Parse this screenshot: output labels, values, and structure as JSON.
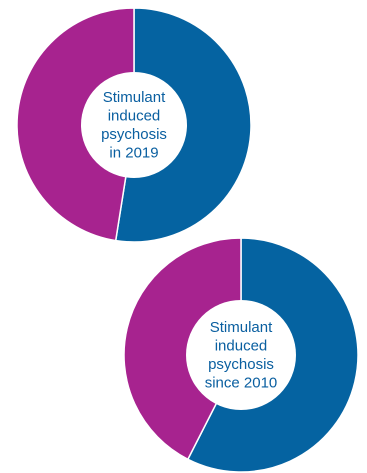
{
  "colors": {
    "segment_a": "#0563a1",
    "segment_b": "#a7238f",
    "center": "#ffffff",
    "label_text": "#0a5fa0"
  },
  "chart_data": [
    {
      "type": "pie",
      "label_lines": [
        "Stimulant",
        "induced",
        "psychosis",
        "in 2019"
      ],
      "slices": [
        {
          "value": 52.5,
          "color_key": "segment_a"
        },
        {
          "value": 47.5,
          "color_key": "segment_b"
        }
      ]
    },
    {
      "type": "pie",
      "label_lines": [
        "Stimulant",
        "induced",
        "psychosis",
        "since 2010"
      ],
      "slices": [
        {
          "value": 57.5,
          "color_key": "segment_a"
        },
        {
          "value": 42.5,
          "color_key": "segment_b"
        }
      ]
    }
  ]
}
